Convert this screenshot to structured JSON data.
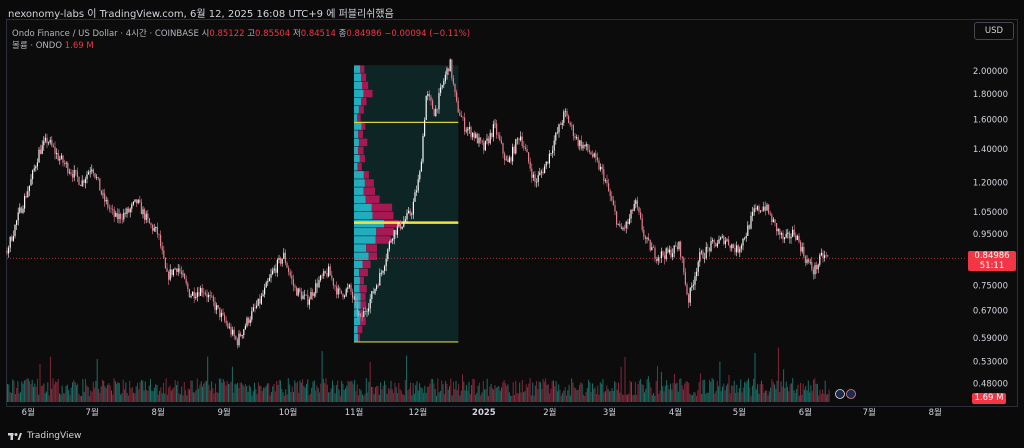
{
  "header": {
    "caption": "nexonomy-labs 이 TradingView.com, 6월 12, 2025 16:08 UTC+9 에 퍼블리쉬했음"
  },
  "legend": {
    "symbol": "Ondo Finance / US Dollar · 4시간 · COINBASE",
    "open_label": "시",
    "open": "0.85122",
    "high_label": "고",
    "high": "0.85504",
    "low_label": "저",
    "low": "0.84514",
    "close_label": "종",
    "close": "0.84986",
    "change": "−0.00094 (−0.11%)",
    "volume_label": "볼륨 · ONDO",
    "volume": "1.69 M"
  },
  "currency_button": "USD",
  "price_tag": {
    "price": "0.84986",
    "countdown": "51:11"
  },
  "volume_tag": "1.69 M",
  "brand": "TradingView",
  "colors": {
    "up": "#f7f7f7",
    "down": "#e57f8f",
    "accent": "#f23645",
    "poc": "#f0e53b",
    "vp_up": "#26c6da",
    "vp_down": "#c2185b"
  },
  "chart_data": {
    "type": "line",
    "title": "Ondo Finance / US Dollar · 4시간 · COINBASE",
    "scale": "log",
    "ylim": [
      0.47,
      2.12
    ],
    "y_ticks": [
      "2.00000",
      "1.80000",
      "1.60000",
      "1.40000",
      "1.20000",
      "1.05000",
      "0.95000",
      "0.85000",
      "0.75000",
      "0.67000",
      "0.59000",
      "0.53000",
      "0.48000"
    ],
    "x_ticks": [
      "6월",
      "7월",
      "8월",
      "9월",
      "10월",
      "11월",
      "12월",
      "2025",
      "2월",
      "3월",
      "4월",
      "5월",
      "6월",
      "7월",
      "8월"
    ],
    "x_tick_dates": [
      "2024-06-01",
      "2024-07-01",
      "2024-08-01",
      "2024-09-01",
      "2024-10-01",
      "2024-11-01",
      "2024-12-01",
      "2025-01-01",
      "2025-02-01",
      "2025-03-01",
      "2025-04-01",
      "2025-05-01",
      "2025-06-01",
      "2025-07-01",
      "2025-08-01"
    ],
    "x_range": [
      "2024-05-22",
      "2025-08-15"
    ],
    "series": [
      {
        "values": [
          {
            "x": "2024-05-22",
            "y": 0.88
          },
          {
            "x": "2024-05-28",
            "y": 1.05
          },
          {
            "x": "2024-06-02",
            "y": 1.2
          },
          {
            "x": "2024-06-06",
            "y": 1.38
          },
          {
            "x": "2024-06-10",
            "y": 1.46
          },
          {
            "x": "2024-06-15",
            "y": 1.35
          },
          {
            "x": "2024-06-20",
            "y": 1.28
          },
          {
            "x": "2024-06-26",
            "y": 1.2
          },
          {
            "x": "2024-07-01",
            "y": 1.3
          },
          {
            "x": "2024-07-06",
            "y": 1.12
          },
          {
            "x": "2024-07-12",
            "y": 1.02
          },
          {
            "x": "2024-07-18",
            "y": 1.05
          },
          {
            "x": "2024-07-22",
            "y": 1.1
          },
          {
            "x": "2024-07-28",
            "y": 0.99
          },
          {
            "x": "2024-08-01",
            "y": 0.95
          },
          {
            "x": "2024-08-05",
            "y": 0.78
          },
          {
            "x": "2024-08-10",
            "y": 0.82
          },
          {
            "x": "2024-08-16",
            "y": 0.72
          },
          {
            "x": "2024-08-22",
            "y": 0.74
          },
          {
            "x": "2024-08-28",
            "y": 0.68
          },
          {
            "x": "2024-09-03",
            "y": 0.62
          },
          {
            "x": "2024-09-07",
            "y": 0.58
          },
          {
            "x": "2024-09-12",
            "y": 0.64
          },
          {
            "x": "2024-09-18",
            "y": 0.7
          },
          {
            "x": "2024-09-24",
            "y": 0.8
          },
          {
            "x": "2024-09-29",
            "y": 0.86
          },
          {
            "x": "2024-10-04",
            "y": 0.74
          },
          {
            "x": "2024-10-10",
            "y": 0.7
          },
          {
            "x": "2024-10-15",
            "y": 0.76
          },
          {
            "x": "2024-10-20",
            "y": 0.8
          },
          {
            "x": "2024-10-25",
            "y": 0.72
          },
          {
            "x": "2024-10-30",
            "y": 0.74
          },
          {
            "x": "2024-11-04",
            "y": 0.64
          },
          {
            "x": "2024-11-09",
            "y": 0.71
          },
          {
            "x": "2024-11-14",
            "y": 0.8
          },
          {
            "x": "2024-11-19",
            "y": 0.95
          },
          {
            "x": "2024-11-24",
            "y": 1.0
          },
          {
            "x": "2024-11-28",
            "y": 1.05
          },
          {
            "x": "2024-12-02",
            "y": 1.25
          },
          {
            "x": "2024-12-05",
            "y": 1.8
          },
          {
            "x": "2024-12-09",
            "y": 1.65
          },
          {
            "x": "2024-12-13",
            "y": 1.9
          },
          {
            "x": "2024-12-16",
            "y": 2.08
          },
          {
            "x": "2024-12-19",
            "y": 1.72
          },
          {
            "x": "2024-12-23",
            "y": 1.55
          },
          {
            "x": "2024-12-27",
            "y": 1.5
          },
          {
            "x": "2025-01-01",
            "y": 1.4
          },
          {
            "x": "2025-01-06",
            "y": 1.55
          },
          {
            "x": "2025-01-12",
            "y": 1.3
          },
          {
            "x": "2025-01-18",
            "y": 1.5
          },
          {
            "x": "2025-01-25",
            "y": 1.2
          },
          {
            "x": "2025-01-30",
            "y": 1.3
          },
          {
            "x": "2025-02-03",
            "y": 1.45
          },
          {
            "x": "2025-02-08",
            "y": 1.65
          },
          {
            "x": "2025-02-14",
            "y": 1.45
          },
          {
            "x": "2025-02-20",
            "y": 1.38
          },
          {
            "x": "2025-02-26",
            "y": 1.25
          },
          {
            "x": "2025-03-02",
            "y": 1.1
          },
          {
            "x": "2025-03-06",
            "y": 0.96
          },
          {
            "x": "2025-03-10",
            "y": 1.0
          },
          {
            "x": "2025-03-13",
            "y": 1.1
          },
          {
            "x": "2025-03-18",
            "y": 0.92
          },
          {
            "x": "2025-03-23",
            "y": 0.86
          },
          {
            "x": "2025-03-29",
            "y": 0.87
          },
          {
            "x": "2025-04-03",
            "y": 0.9
          },
          {
            "x": "2025-04-07",
            "y": 0.7
          },
          {
            "x": "2025-04-12",
            "y": 0.85
          },
          {
            "x": "2025-04-18",
            "y": 0.9
          },
          {
            "x": "2025-04-24",
            "y": 0.93
          },
          {
            "x": "2025-04-30",
            "y": 0.88
          },
          {
            "x": "2025-05-04",
            "y": 0.95
          },
          {
            "x": "2025-05-08",
            "y": 1.05
          },
          {
            "x": "2025-05-13",
            "y": 1.08
          },
          {
            "x": "2025-05-18",
            "y": 0.98
          },
          {
            "x": "2025-05-22",
            "y": 0.92
          },
          {
            "x": "2025-05-27",
            "y": 0.96
          },
          {
            "x": "2025-06-01",
            "y": 0.85
          },
          {
            "x": "2025-06-05",
            "y": 0.8
          },
          {
            "x": "2025-06-09",
            "y": 0.86
          },
          {
            "x": "2025-06-12",
            "y": 0.85
          }
        ]
      }
    ],
    "volume_profile": {
      "range": [
        "2024-11-01",
        "2024-12-20"
      ],
      "high": 2.05,
      "low": 0.58,
      "poc": 1.0,
      "value_area_high": 1.58,
      "value_area_low": 0.58
    },
    "current_price": 0.84986,
    "volume_last": "1.69 M",
    "grid": false
  }
}
